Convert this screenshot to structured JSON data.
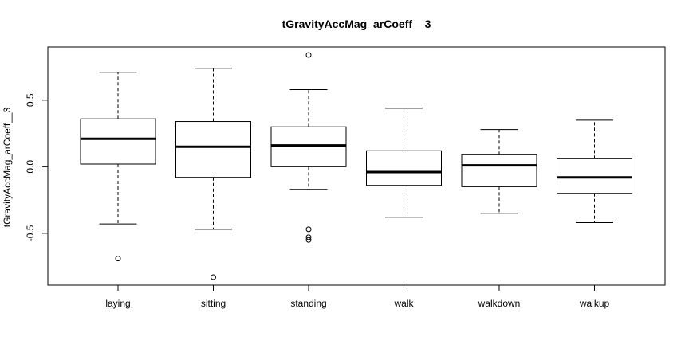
{
  "chart_data": {
    "type": "boxplot",
    "title": "tGravityAccMag_arCoeff__3",
    "xlabel": "",
    "ylabel": "tGravityAccMag_arCoeff__3",
    "ylim": [
      -0.89,
      0.9
    ],
    "yticks": [
      -0.5,
      0.0,
      0.5
    ],
    "ytick_labels": [
      "-0.5",
      "0.0",
      "0.5"
    ],
    "grid": false,
    "categories": [
      "laying",
      "sitting",
      "standing",
      "walk",
      "walkdown",
      "walkup"
    ],
    "boxes": [
      {
        "category": "laying",
        "whisker_low": -0.43,
        "q1": 0.02,
        "median": 0.21,
        "q3": 0.36,
        "whisker_high": 0.71,
        "outliers": [
          -0.69
        ]
      },
      {
        "category": "sitting",
        "whisker_low": -0.47,
        "q1": -0.08,
        "median": 0.15,
        "q3": 0.34,
        "whisker_high": 0.74,
        "outliers": [
          -0.83
        ]
      },
      {
        "category": "standing",
        "whisker_low": -0.17,
        "q1": 0.0,
        "median": 0.16,
        "q3": 0.3,
        "whisker_high": 0.58,
        "outliers": [
          0.84,
          -0.47,
          -0.53,
          -0.55
        ]
      },
      {
        "category": "walk",
        "whisker_low": -0.38,
        "q1": -0.14,
        "median": -0.04,
        "q3": 0.12,
        "whisker_high": 0.44,
        "outliers": []
      },
      {
        "category": "walkdown",
        "whisker_low": -0.35,
        "q1": -0.15,
        "median": 0.01,
        "q3": 0.09,
        "whisker_high": 0.28,
        "outliers": []
      },
      {
        "category": "walkup",
        "whisker_low": -0.42,
        "q1": -0.2,
        "median": -0.08,
        "q3": 0.06,
        "whisker_high": 0.35,
        "outliers": []
      }
    ]
  }
}
